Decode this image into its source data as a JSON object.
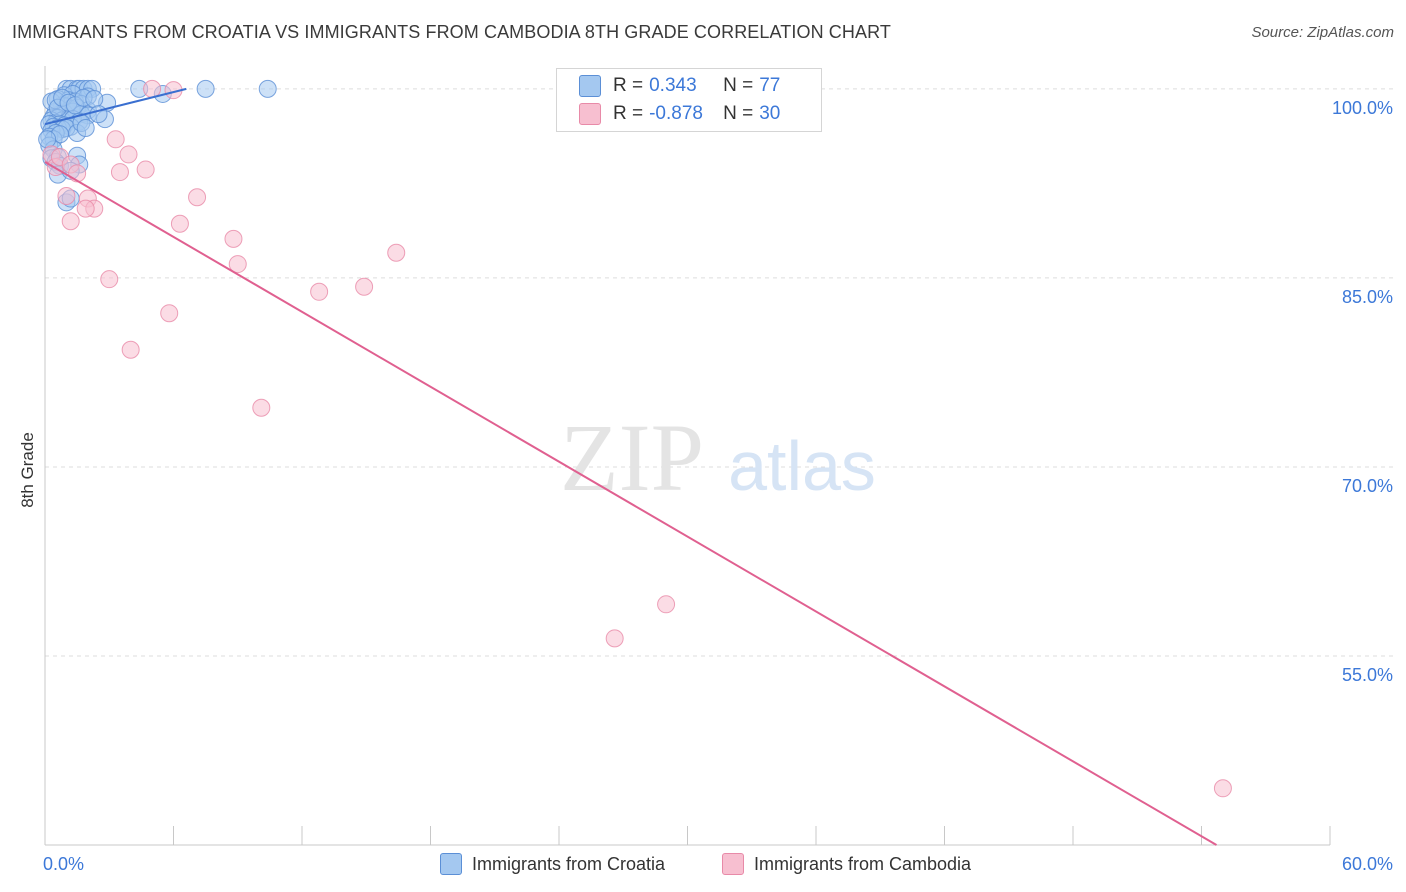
{
  "title": "IMMIGRANTS FROM CROATIA VS IMMIGRANTS FROM CAMBODIA 8TH GRADE CORRELATION CHART",
  "source": "Source: ZipAtlas.com",
  "watermark": {
    "zip": "ZIP",
    "atlas": "atlas"
  },
  "legend": {
    "r_label": "R =",
    "n_label": "N =",
    "series1": {
      "r": "0.343",
      "n": "77"
    },
    "series2": {
      "r": "-0.878",
      "n": "30"
    }
  },
  "bottom_legend": {
    "series1": "Immigrants from Croatia",
    "series2": "Immigrants from Cambodia"
  },
  "colors": {
    "series1_fill": "#a4c8f0",
    "series1_stroke": "#5b8fd6",
    "series1_line": "#3a6fd0",
    "series2_fill": "#f7bfd0",
    "series2_stroke": "#e88aa8",
    "series2_line": "#e06090",
    "tick_text": "#3c78d8",
    "grid": "#dddddd"
  },
  "chart_data": {
    "type": "scatter",
    "title": "IMMIGRANTS FROM CROATIA VS IMMIGRANTS FROM CAMBODIA 8TH GRADE CORRELATION CHART",
    "xlabel": "",
    "ylabel": "8th Grade",
    "xlim": [
      0,
      60
    ],
    "ylim": [
      40,
      101.5
    ],
    "x_tick_labels": [
      "0.0%",
      "60.0%"
    ],
    "y_ticks": [
      55,
      70,
      85,
      100
    ],
    "y_tick_labels": [
      "55.0%",
      "70.0%",
      "85.0%",
      "100.0%"
    ],
    "grid": true,
    "series": [
      {
        "name": "Immigrants from Croatia",
        "trend": {
          "x": [
            0,
            6.6
          ],
          "y": [
            97.2,
            100.0
          ]
        },
        "points": [
          [
            1.0,
            100
          ],
          [
            1.2,
            100
          ],
          [
            1.5,
            100
          ],
          [
            1.6,
            100
          ],
          [
            1.8,
            100
          ],
          [
            2.0,
            100
          ],
          [
            2.2,
            100
          ],
          [
            7.5,
            100
          ],
          [
            10.4,
            100
          ],
          [
            4.4,
            100
          ],
          [
            0.9,
            99.5
          ],
          [
            1.3,
            99.6
          ],
          [
            2.0,
            99.4
          ],
          [
            5.5,
            99.6
          ],
          [
            0.6,
            99.2
          ],
          [
            1.1,
            99.1
          ],
          [
            1.4,
            99.0
          ],
          [
            1.7,
            98.8
          ],
          [
            2.9,
            98.9
          ],
          [
            0.8,
            98.7
          ],
          [
            1.0,
            98.6
          ],
          [
            1.2,
            98.4
          ],
          [
            1.5,
            98.5
          ],
          [
            2.0,
            98.3
          ],
          [
            0.5,
            98.2
          ],
          [
            0.7,
            98.0
          ],
          [
            0.9,
            98.1
          ],
          [
            1.3,
            98.2
          ],
          [
            1.7,
            98.0
          ],
          [
            2.0,
            97.9
          ],
          [
            0.4,
            97.8
          ],
          [
            0.6,
            97.7
          ],
          [
            0.8,
            97.5
          ],
          [
            1.1,
            97.6
          ],
          [
            1.3,
            97.6
          ],
          [
            1.6,
            97.4
          ],
          [
            0.3,
            97.5
          ],
          [
            0.5,
            97.3
          ],
          [
            0.7,
            97.2
          ],
          [
            0.9,
            97.1
          ],
          [
            1.2,
            97.0
          ],
          [
            0.2,
            97.2
          ],
          [
            0.4,
            97.0
          ],
          [
            0.6,
            96.9
          ],
          [
            0.8,
            96.8
          ],
          [
            1.0,
            96.9
          ],
          [
            0.3,
            96.7
          ],
          [
            0.5,
            96.5
          ],
          [
            0.2,
            96.2
          ],
          [
            0.4,
            96.0
          ],
          [
            0.7,
            96.4
          ],
          [
            1.5,
            96.5
          ],
          [
            1.7,
            97.3
          ],
          [
            2.8,
            97.6
          ],
          [
            1.9,
            96.9
          ],
          [
            0.3,
            99.0
          ],
          [
            0.5,
            99.1
          ],
          [
            0.6,
            98.5
          ],
          [
            0.8,
            99.3
          ],
          [
            1.1,
            98.9
          ],
          [
            1.4,
            98.7
          ],
          [
            1.8,
            99.3
          ],
          [
            2.3,
            99.2
          ],
          [
            2.5,
            98.0
          ],
          [
            0.2,
            95.5
          ],
          [
            0.4,
            95.2
          ],
          [
            0.6,
            94.6
          ],
          [
            0.3,
            94.5
          ],
          [
            0.5,
            94.2
          ],
          [
            0.7,
            93.9
          ],
          [
            1.5,
            94.7
          ],
          [
            1.6,
            94.0
          ],
          [
            0.6,
            93.2
          ],
          [
            1.2,
            93.5
          ],
          [
            1.0,
            91.0
          ],
          [
            1.2,
            91.3
          ],
          [
            0.1,
            96.0
          ]
        ]
      },
      {
        "name": "Immigrants from Cambodia",
        "trend": {
          "x": [
            0,
            54.7
          ],
          "y": [
            94.2,
            40.0
          ]
        },
        "points": [
          [
            5.0,
            100
          ],
          [
            6.0,
            99.9
          ],
          [
            0.3,
            94.8
          ],
          [
            0.5,
            93.8
          ],
          [
            0.7,
            94.6
          ],
          [
            1.2,
            94.0
          ],
          [
            1.5,
            93.3
          ],
          [
            3.3,
            96.0
          ],
          [
            3.5,
            93.4
          ],
          [
            3.9,
            94.8
          ],
          [
            4.7,
            93.6
          ],
          [
            1.0,
            91.5
          ],
          [
            2.0,
            91.3
          ],
          [
            2.3,
            90.5
          ],
          [
            1.9,
            90.5
          ],
          [
            1.2,
            89.5
          ],
          [
            6.3,
            89.3
          ],
          [
            7.1,
            91.4
          ],
          [
            8.8,
            88.1
          ],
          [
            9.0,
            86.1
          ],
          [
            16.4,
            87.0
          ],
          [
            3.0,
            84.9
          ],
          [
            12.8,
            83.9
          ],
          [
            14.9,
            84.3
          ],
          [
            5.8,
            82.2
          ],
          [
            4.0,
            79.3
          ],
          [
            10.1,
            74.7
          ],
          [
            26.6,
            56.4
          ],
          [
            29.0,
            59.1
          ],
          [
            55.0,
            44.5
          ]
        ]
      }
    ]
  }
}
